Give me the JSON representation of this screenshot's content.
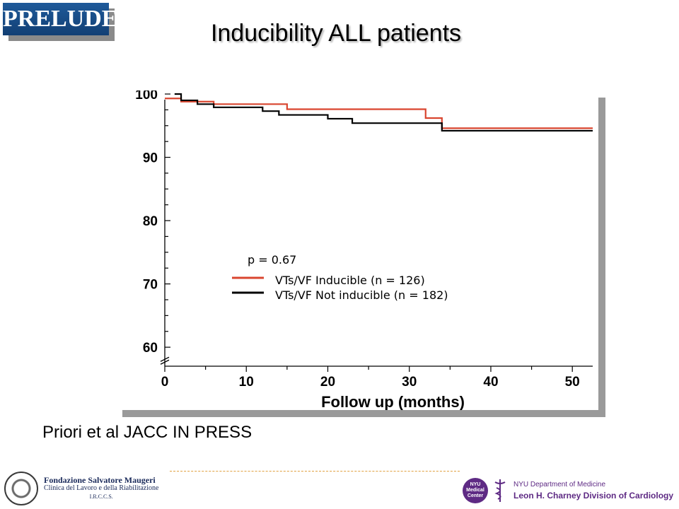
{
  "header": {
    "logo_text": "PRELUDE",
    "title": "Inducibility ALL patients"
  },
  "colors": {
    "inducible": "#d9452f",
    "not_inducible": "#000000",
    "brand_blue": "#1f5a9a",
    "nyu_purple": "#5e2a84"
  },
  "chart_data": {
    "type": "line",
    "subtype": "kaplan-meier step",
    "xlabel": "Follow up (months)",
    "ylabel": "",
    "xlim": [
      0,
      52.5
    ],
    "ylim": [
      57,
      100
    ],
    "x_ticks": [
      0,
      10,
      20,
      30,
      40,
      50
    ],
    "y_ticks": [
      60,
      70,
      80,
      90,
      100
    ],
    "y_axis_break": true,
    "annotation": "p = 0.67",
    "legend_placement": "center",
    "series": [
      {
        "name": "VTs/VF Inducible  (n = 126)",
        "color": "#d9452f",
        "steps": [
          [
            0,
            99.3
          ],
          [
            2,
            98.8
          ],
          [
            6,
            98.4
          ],
          [
            15,
            97.6
          ],
          [
            32,
            96.2
          ],
          [
            34,
            94.6
          ],
          [
            52.5,
            94.6
          ]
        ]
      },
      {
        "name": "VTs/VF Not inducible (n = 182)",
        "color": "#000000",
        "steps": [
          [
            1.2,
            100
          ],
          [
            2,
            99.0
          ],
          [
            4,
            98.4
          ],
          [
            6,
            97.9
          ],
          [
            12,
            97.3
          ],
          [
            14,
            96.7
          ],
          [
            20,
            96.1
          ],
          [
            23,
            95.4
          ],
          [
            34,
            94.2
          ],
          [
            52.5,
            94.2
          ]
        ]
      }
    ]
  },
  "citation": "Priori et al JACC IN PRESS",
  "footer": {
    "foundation_line1": "Fondazione Salvatore Maugeri",
    "foundation_line2": "Clinica del Lavoro e della Riabilitazione",
    "foundation_line3": "I.R.C.C.S.",
    "nyu_badge_line1": "NYU",
    "nyu_badge_line2": "Medical",
    "nyu_badge_line3": "Center",
    "nyu_dept": "NYU Department of Medicine",
    "nyu_division": "Leon H. Charney Division of Cardiology"
  }
}
